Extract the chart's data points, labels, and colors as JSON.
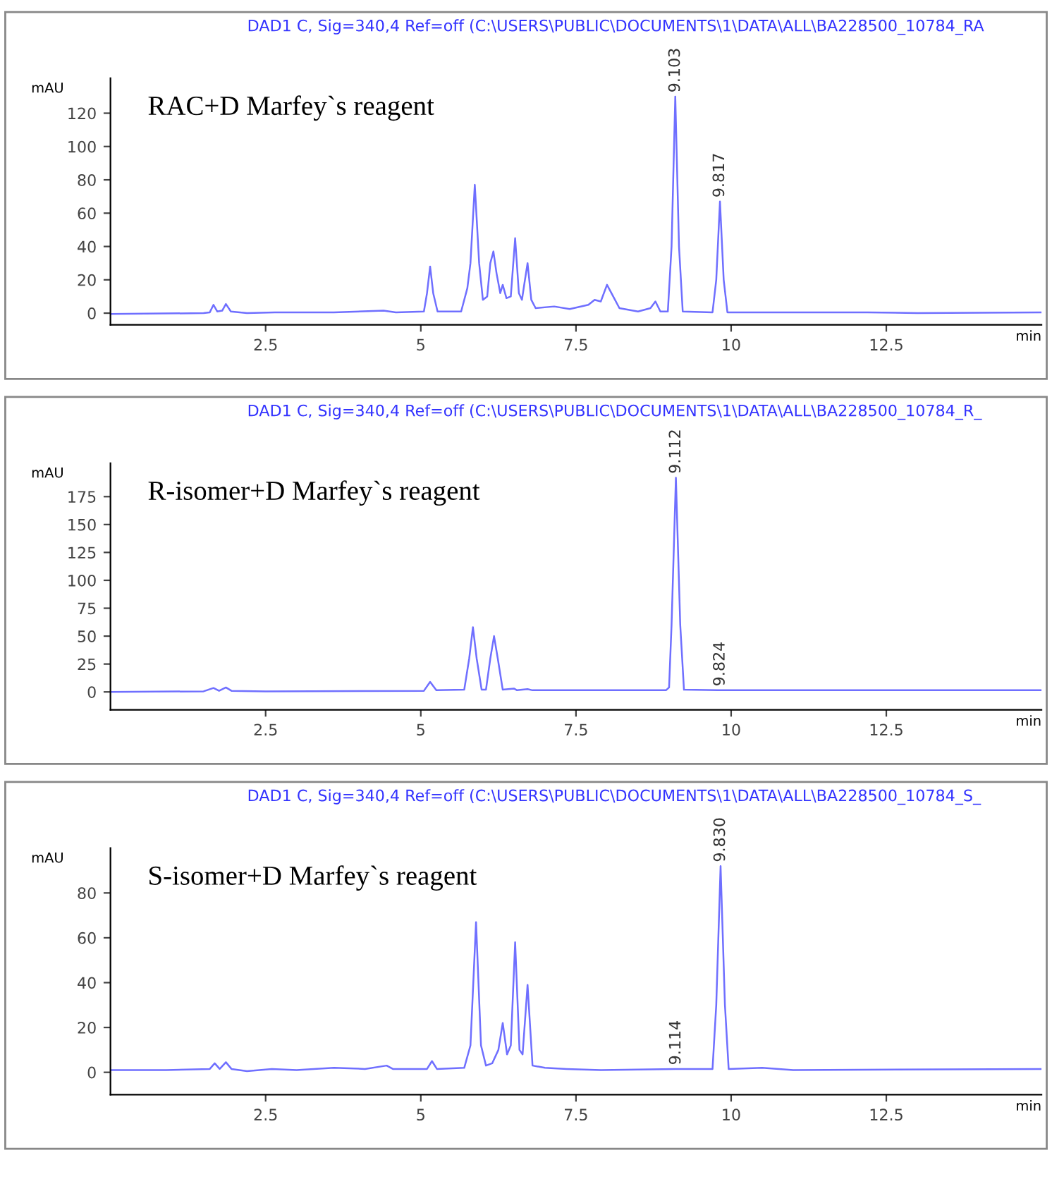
{
  "chart_data": [
    {
      "type": "line",
      "title": "DAD1 C, Sig=340,4 Ref=off (C:\\USERS\\PUBLIC\\DOCUMENTS\\1\\DATA\\ALL\\BA228500_10784_RA",
      "xlabel": "min",
      "ylabel": "mAU",
      "xlim": [
        0,
        15
      ],
      "xticks": [
        2.5,
        5,
        7.5,
        10,
        12.5
      ],
      "ylim": [
        -7,
        141
      ],
      "yticks": [
        0,
        20,
        40,
        60,
        80,
        100,
        120
      ],
      "series": [
        {
          "color": "#6f6fff",
          "x": [
            0,
            1.5,
            1.6,
            1.66,
            1.72,
            1.8,
            1.86,
            1.94,
            2.2,
            2.65,
            3.6,
            4.4,
            4.6,
            5.05,
            5.1,
            5.15,
            5.2,
            5.27,
            5.65,
            5.75,
            5.8,
            5.87,
            5.94,
            6.0,
            6.07,
            6.12,
            6.17,
            6.22,
            6.28,
            6.32,
            6.38,
            6.45,
            6.52,
            6.58,
            6.63,
            6.67,
            6.72,
            6.78,
            6.85,
            7.15,
            7.4,
            7.7,
            7.8,
            7.9,
            8.0,
            8.1,
            8.2,
            8.5,
            8.7,
            8.78,
            8.86,
            8.98,
            9.04,
            9.1,
            9.16,
            9.22,
            9.7,
            9.76,
            9.82,
            9.88,
            9.94,
            10.5,
            12.2,
            13,
            15
          ],
          "values": [
            -0.5,
            0,
            0.5,
            5,
            1,
            1.5,
            5.5,
            1,
            0,
            0.5,
            0.5,
            1.5,
            0.5,
            1,
            12,
            28,
            12,
            1,
            1,
            15,
            30,
            77,
            30,
            8,
            10,
            30,
            37,
            24,
            12,
            17,
            9,
            10,
            45,
            12,
            8,
            18,
            30,
            8,
            3,
            4,
            2.5,
            5,
            8,
            7,
            17,
            10,
            3,
            1,
            3,
            7,
            1,
            1,
            40,
            130,
            40,
            1,
            0.5,
            20,
            67,
            20,
            0.5,
            0.5,
            0.5,
            0,
            0.5
          ]
        }
      ],
      "annotations": [
        "RAC+D Marfey`s reagent",
        {
          "text": "9.103",
          "x": 9.103,
          "y": 130
        },
        {
          "text": "9.817",
          "x": 9.817,
          "y": 67
        }
      ]
    },
    {
      "type": "line",
      "title": "DAD1 C, Sig=340,4 Ref=off (C:\\USERS\\PUBLIC\\DOCUMENTS\\1\\DATA\\ALL\\BA228500_10784_R_",
      "xlabel": "min",
      "ylabel": "mAU",
      "xlim": [
        0,
        15
      ],
      "xticks": [
        2.5,
        5,
        7.5,
        10,
        12.5
      ],
      "ylim": [
        -16,
        205
      ],
      "yticks": [
        0,
        25,
        50,
        75,
        100,
        125,
        150,
        175
      ],
      "series": [
        {
          "color": "#6f6fff",
          "x": [
            0,
            1.5,
            1.66,
            1.75,
            1.86,
            1.95,
            2.5,
            5.05,
            5.15,
            5.25,
            5.7,
            5.78,
            5.84,
            5.9,
            5.98,
            6.05,
            6.12,
            6.18,
            6.24,
            6.32,
            6.5,
            6.55,
            6.72,
            6.8,
            8.95,
            9.0,
            9.04,
            9.11,
            9.18,
            9.24,
            9.82,
            15
          ],
          "values": [
            0,
            0.5,
            3.5,
            1,
            4,
            1,
            0.5,
            1,
            9,
            1.5,
            2,
            30,
            58,
            30,
            2,
            2,
            30,
            50,
            30,
            2,
            3,
            1.5,
            2.5,
            1.5,
            1.5,
            4,
            60,
            192,
            60,
            2,
            1.5,
            1.5
          ]
        }
      ],
      "annotations": [
        "R-isomer+D Marfey`s reagent",
        {
          "text": "9.112",
          "x": 9.112,
          "y": 192
        },
        {
          "text": "9.824",
          "x": 9.824,
          "y": 1.5
        }
      ]
    },
    {
      "type": "line",
      "title": "DAD1 C, Sig=340,4 Ref=off (C:\\USERS\\PUBLIC\\DOCUMENTS\\1\\DATA\\ALL\\BA228500_10784_S_",
      "xlabel": "min",
      "ylabel": "mAU",
      "xlim": [
        0,
        15
      ],
      "xticks": [
        2.5,
        5,
        7.5,
        10,
        12.5
      ],
      "ylim": [
        -10,
        100
      ],
      "yticks": [
        0,
        20,
        40,
        60,
        80
      ],
      "series": [
        {
          "color": "#6f6fff",
          "x": [
            0,
            0.9,
            1.6,
            1.68,
            1.76,
            1.86,
            1.95,
            2.2,
            2.6,
            3.0,
            3.6,
            4.1,
            4.45,
            4.55,
            5.1,
            5.18,
            5.26,
            5.7,
            5.8,
            5.89,
            5.97,
            6.05,
            6.15,
            6.25,
            6.32,
            6.39,
            6.45,
            6.52,
            6.59,
            6.64,
            6.72,
            6.8,
            7.0,
            7.35,
            7.9,
            9.1,
            9.7,
            9.76,
            9.83,
            9.9,
            9.96,
            10.5,
            11,
            15
          ],
          "values": [
            1,
            1,
            1.5,
            4,
            1.5,
            4.5,
            1.5,
            0.5,
            1.5,
            1,
            2,
            1.5,
            3,
            1.5,
            1.5,
            5,
            1.5,
            2,
            12,
            67,
            12,
            3,
            4,
            10,
            22,
            8,
            12,
            58,
            10,
            8,
            39,
            3,
            2,
            1.5,
            1,
            1.5,
            1.5,
            30,
            92,
            30,
            1.5,
            2,
            1,
            1.5
          ]
        }
      ],
      "annotations": [
        "S-isomer+D Marfey`s reagent",
        {
          "text": "9.114",
          "x": 9.114,
          "y": 1.5
        },
        {
          "text": "9.830",
          "x": 9.83,
          "y": 92
        }
      ]
    }
  ]
}
